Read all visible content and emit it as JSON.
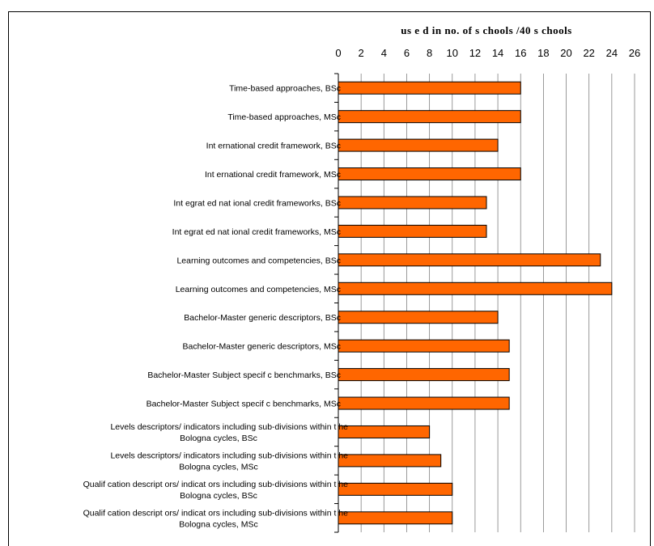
{
  "chart_data": {
    "type": "bar",
    "orientation": "horizontal",
    "title": "us e d in no. of s chools /40 s chools",
    "xlim": [
      0,
      26
    ],
    "xticks": [
      "0",
      "2",
      "4",
      "6",
      "8",
      "10",
      "12",
      "14",
      "16",
      "18",
      "20",
      "22",
      "24",
      "26"
    ],
    "grid": true,
    "bar_color": "#ff6600",
    "categories": [
      [
        "Time-based approaches, BSc"
      ],
      [
        "Time-based approaches, MSc"
      ],
      [
        "Int ernational credit framework, BSc"
      ],
      [
        "Int ernational credit framework, MSc"
      ],
      [
        "Int egrat ed nat ional credit frameworks, BSc"
      ],
      [
        "Int egrat ed nat ional credit frameworks, MSc"
      ],
      [
        "Learning outcomes and competencies, BSc"
      ],
      [
        "Learning outcomes and competencies, MSc"
      ],
      [
        "Bachelor-Master generic descriptors, BSc"
      ],
      [
        "Bachelor-Master generic descriptors, MSc"
      ],
      [
        "Bachelor-Master Subject specif c benchmarks, BSc"
      ],
      [
        "Bachelor-Master Subject specif c benchmarks, MSc"
      ],
      [
        "Levels descriptors/ indicators including sub-divisions within t he",
        "Bologna cycles, BSc"
      ],
      [
        "Levels descriptors/ indicators including sub-divisions within t he",
        "Bologna cycles, MSc"
      ],
      [
        "Qualif cation descript ors/ indicat ors including sub-divisions within t he",
        "Bologna cycles, BSc"
      ],
      [
        "Qualif cation descript ors/ indicat ors including sub-divisions within t he",
        "Bologna cycles, MSc"
      ]
    ],
    "values": [
      16,
      16,
      14,
      16,
      13,
      13,
      23,
      24,
      14,
      15,
      15,
      15,
      8,
      9,
      10,
      10
    ]
  }
}
